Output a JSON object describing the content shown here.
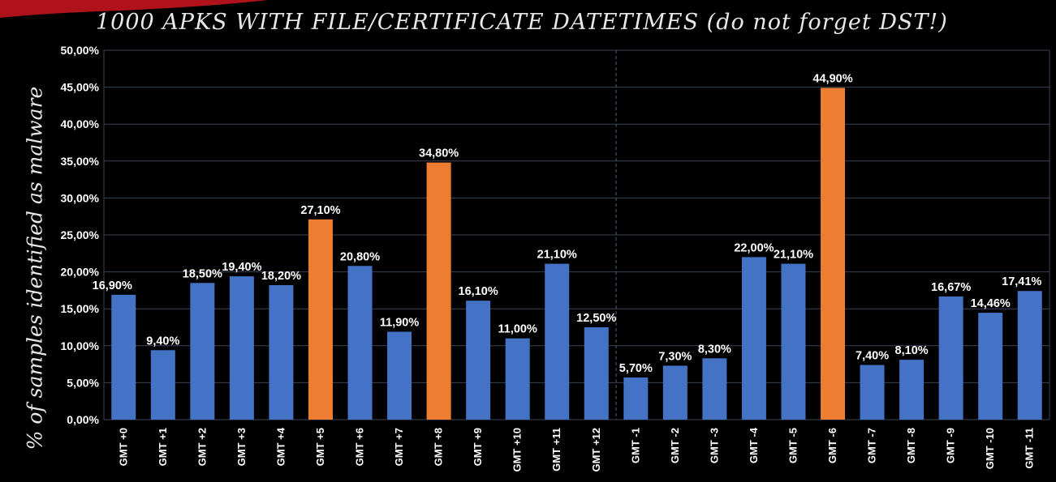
{
  "colors": {
    "background": "#000000",
    "bar": "#4472c4",
    "highlight": "#ed7d31",
    "grid": "#3a4256",
    "corner_accent": "#c0101a"
  },
  "chart_data": {
    "type": "bar",
    "title": "1000 APKS WITH  FILE/CERTIFICATE  DATETIMES (do not forget DST!)",
    "xlabel": "",
    "ylabel": "% of samples identified as malware",
    "ylim": [
      0,
      50
    ],
    "y_ticks": [
      "0,00%",
      "5,00%",
      "10,00%",
      "15,00%",
      "20,00%",
      "25,00%",
      "30,00%",
      "35,00%",
      "40,00%",
      "45,00%",
      "50,00%"
    ],
    "grid": true,
    "divider_after_category": "GMT +12",
    "categories": [
      "GMT +0",
      "GMT +1",
      "GMT +2",
      "GMT +3",
      "GMT +4",
      "GMT +5",
      "GMT +6",
      "GMT +7",
      "GMT +8",
      "GMT +9",
      "GMT +10",
      "GMT +11",
      "GMT +12",
      "GMT -1",
      "GMT -2",
      "GMT -3",
      "GMT -4",
      "GMT -5",
      "GMT -6",
      "GMT -7",
      "GMT -8",
      "GMT -9",
      "GMT -10",
      "GMT -11"
    ],
    "values": [
      16.9,
      9.4,
      18.5,
      19.4,
      18.2,
      27.1,
      20.8,
      11.9,
      34.8,
      16.1,
      11.0,
      21.1,
      12.5,
      5.7,
      7.3,
      8.3,
      22.0,
      21.1,
      44.9,
      7.4,
      8.1,
      16.67,
      14.46,
      17.41
    ],
    "data_labels": [
      "16,90%",
      "9,40%",
      "18,50%",
      "19,40%",
      "18,20%",
      "27,10%",
      "20,80%",
      "11,90%",
      "34,80%",
      "16,10%",
      "11,00%",
      "21,10%",
      "12,50%",
      "5,70%",
      "7,30%",
      "8,30%",
      "22,00%",
      "21,10%",
      "44,90%",
      "7,40%",
      "8,10%",
      "16,67%",
      "14,46%",
      "17,41%"
    ],
    "highlighted": [
      "GMT +5",
      "GMT +8",
      "GMT -6"
    ]
  }
}
